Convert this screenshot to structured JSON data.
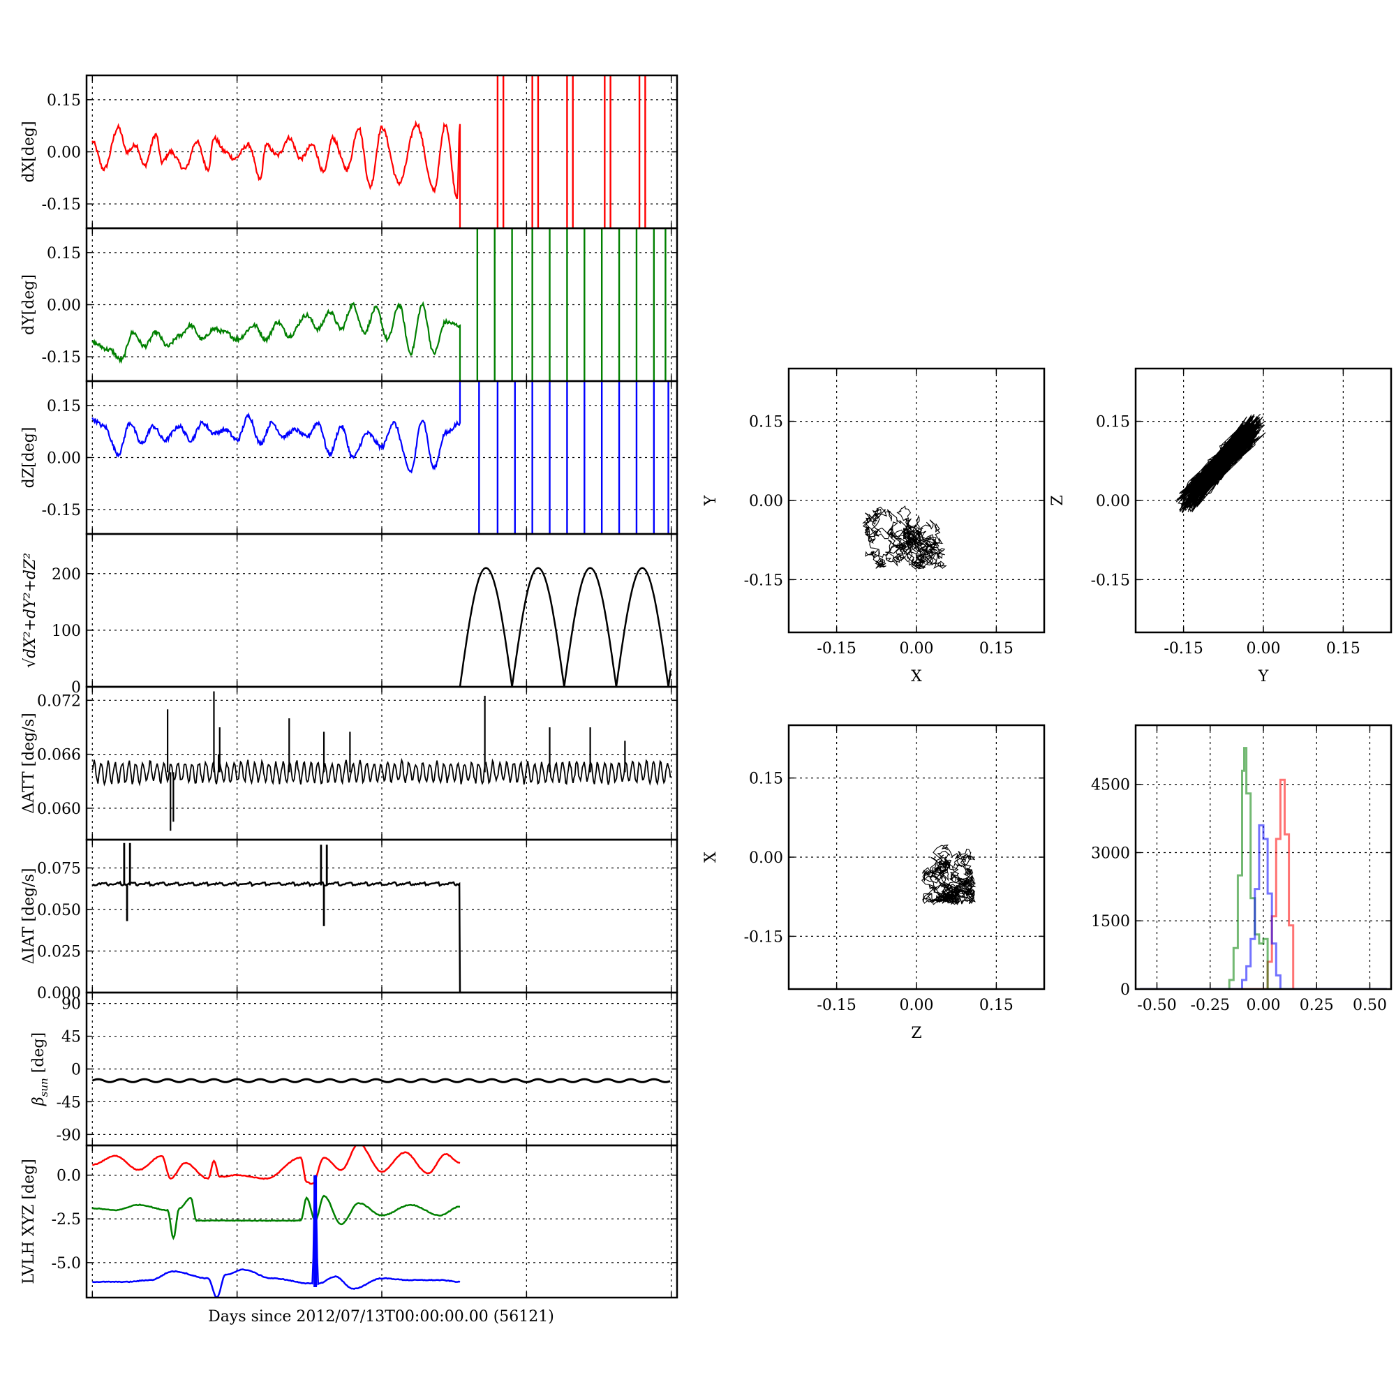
{
  "figure": {
    "xlabel": "Days since 2012/07/13T00:00:00.00 (56121)",
    "colors": {
      "x": "#ff0000",
      "y": "#008000",
      "z": "#0000ff",
      "k": "#000000"
    }
  },
  "chart_data": [
    {
      "id": "dx",
      "type": "line",
      "ylabel": "dX[deg]",
      "ylim": [
        -0.22,
        0.22
      ],
      "yticks": [
        "0.15",
        "0.00",
        "-0.15"
      ],
      "ytick_values": [
        0.15,
        0.0,
        -0.15
      ],
      "series": [
        {
          "color": "#ff0000",
          "x": [
            0.0,
            0.02,
            0.045,
            0.06,
            0.075,
            0.09,
            0.11,
            0.12,
            0.135,
            0.16,
            0.18,
            0.2,
            0.21,
            0.23,
            0.245,
            0.27,
            0.29,
            0.3,
            0.32,
            0.34,
            0.36,
            0.38,
            0.4,
            0.415,
            0.44,
            0.46,
            0.48,
            0.5,
            0.53,
            0.56,
            0.59,
            0.61,
            0.63,
            0.635,
            0.635
          ],
          "values": [
            0.03,
            -0.05,
            0.07,
            0.0,
            0.02,
            -0.04,
            0.05,
            -0.03,
            0.0,
            -0.05,
            0.03,
            -0.05,
            0.04,
            0.0,
            -0.02,
            0.02,
            -0.08,
            0.02,
            -0.01,
            0.04,
            -0.02,
            0.02,
            -0.06,
            0.04,
            -0.05,
            0.07,
            -0.1,
            0.07,
            -0.09,
            0.08,
            -0.11,
            0.08,
            -0.13,
            0.08,
            -0.22
          ],
          "spikes": [
            0.7,
            0.71,
            0.76,
            0.77,
            0.82,
            0.83,
            0.885,
            0.895,
            0.945,
            0.955
          ],
          "spike_range": [
            -0.22,
            0.22
          ]
        }
      ]
    },
    {
      "id": "dy",
      "type": "line",
      "ylabel": "dY[deg]",
      "ylim": [
        -0.22,
        0.22
      ],
      "yticks": [
        "0.15",
        "0.00",
        "-0.15"
      ],
      "ytick_values": [
        0.15,
        0.0,
        -0.15
      ],
      "series": [
        {
          "color": "#008000",
          "x": [
            0.0,
            0.03,
            0.05,
            0.07,
            0.09,
            0.11,
            0.13,
            0.15,
            0.17,
            0.19,
            0.21,
            0.23,
            0.25,
            0.28,
            0.3,
            0.32,
            0.34,
            0.37,
            0.39,
            0.41,
            0.43,
            0.45,
            0.47,
            0.49,
            0.51,
            0.53,
            0.55,
            0.57,
            0.59,
            0.61,
            0.635,
            0.635
          ],
          "values": [
            -0.11,
            -0.13,
            -0.16,
            -0.08,
            -0.12,
            -0.08,
            -0.12,
            -0.09,
            -0.06,
            -0.1,
            -0.07,
            -0.08,
            -0.1,
            -0.06,
            -0.1,
            -0.05,
            -0.09,
            -0.03,
            -0.07,
            -0.02,
            -0.07,
            0.0,
            -0.08,
            -0.01,
            -0.1,
            0.0,
            -0.14,
            0.0,
            -0.14,
            -0.05,
            -0.06,
            -0.22
          ],
          "spikes": [
            0.665,
            0.695,
            0.725,
            0.76,
            0.79,
            0.82,
            0.85,
            0.88,
            0.91,
            0.94,
            0.97,
            0.99
          ],
          "spike_range": [
            -0.22,
            0.22
          ]
        }
      ]
    },
    {
      "id": "dz",
      "type": "line",
      "ylabel": "dZ[deg]",
      "ylim": [
        -0.22,
        0.22
      ],
      "yticks": [
        "0.15",
        "0.00",
        "-0.15"
      ],
      "ytick_values": [
        0.15,
        0.0,
        -0.15
      ],
      "series": [
        {
          "color": "#0000ff",
          "x": [
            0.0,
            0.02,
            0.045,
            0.065,
            0.085,
            0.105,
            0.125,
            0.15,
            0.17,
            0.19,
            0.21,
            0.23,
            0.25,
            0.27,
            0.29,
            0.31,
            0.33,
            0.35,
            0.37,
            0.39,
            0.41,
            0.43,
            0.45,
            0.475,
            0.5,
            0.52,
            0.55,
            0.57,
            0.59,
            0.61,
            0.635,
            0.635
          ],
          "values": [
            0.11,
            0.09,
            0.01,
            0.1,
            0.04,
            0.09,
            0.05,
            0.09,
            0.05,
            0.1,
            0.07,
            0.08,
            0.05,
            0.12,
            0.04,
            0.1,
            0.06,
            0.08,
            0.06,
            0.1,
            0.01,
            0.09,
            0.0,
            0.07,
            0.03,
            0.1,
            -0.04,
            0.11,
            -0.03,
            0.07,
            0.1,
            0.22
          ],
          "spikes": [
            0.668,
            0.7,
            0.73,
            0.76,
            0.79,
            0.82,
            0.85,
            0.88,
            0.91,
            0.94,
            0.97,
            0.995
          ],
          "spike_range": [
            -0.22,
            0.22
          ]
        }
      ]
    },
    {
      "id": "mag",
      "type": "line",
      "ylabel": "√dX²+dY²+dZ²",
      "ylim": [
        0,
        270
      ],
      "yticks": [
        "200",
        "100",
        "0"
      ],
      "ytick_values": [
        200,
        100,
        0
      ],
      "series": [
        {
          "color": "#000000",
          "x": [
            0.0,
            0.635,
            0.68,
            0.725,
            0.77,
            0.815,
            0.86,
            0.905,
            0.95,
            0.995,
            1.0
          ],
          "values": [
            0,
            0,
            210,
            0,
            210,
            0,
            210,
            0,
            210,
            0,
            190
          ],
          "wave": {
            "x0": 0.635,
            "x1": 0.995,
            "period": 0.09,
            "amp": 210
          }
        }
      ]
    },
    {
      "id": "datt",
      "type": "line",
      "ylabel": "ΔATT [deg/s]",
      "ylim": [
        0.0565,
        0.0735
      ],
      "yticks": [
        "0.072",
        "0.066",
        "0.060"
      ],
      "ytick_values": [
        0.072,
        0.066,
        0.06
      ],
      "series": [
        {
          "color": "#000000",
          "baseline": 0.064,
          "noise": 0.0011,
          "x": [
            0.13,
            0.135,
            0.14,
            0.21,
            0.22,
            0.218,
            0.34,
            0.4,
            0.445,
            0.678,
            0.79,
            0.86,
            0.92
          ],
          "values": [
            0.071,
            0.0575,
            0.0585,
            0.073,
            0.069,
            0.066,
            0.07,
            0.0685,
            0.0685,
            0.0725,
            0.069,
            0.069,
            0.0675
          ]
        }
      ]
    },
    {
      "id": "diat",
      "type": "line",
      "ylabel": "ΔIAT [deg/s]",
      "ylim": [
        0.0,
        0.092
      ],
      "yticks": [
        "0.075",
        "0.050",
        "0.025",
        "0.000"
      ],
      "ytick_values": [
        0.075,
        0.05,
        0.025,
        0.0
      ],
      "series": [
        {
          "color": "#000000",
          "baseline": 0.0645,
          "end": 0.635,
          "x": [
            0.055,
            0.06,
            0.065,
            0.395,
            0.4,
            0.405,
            0.635
          ],
          "values": [
            0.09,
            0.043,
            0.09,
            0.089,
            0.04,
            0.089,
            0.0
          ]
        }
      ]
    },
    {
      "id": "beta",
      "type": "line",
      "ylabel": "βsun [deg]",
      "ylim": [
        -105,
        105
      ],
      "yticks": [
        "90",
        "45",
        "0",
        "-45",
        "-90"
      ],
      "ytick_values": [
        90,
        45,
        0,
        -45,
        -90
      ],
      "series": [
        {
          "color": "#000000",
          "level": -16,
          "amp": 2,
          "period": 0.04
        }
      ]
    },
    {
      "id": "lvlh",
      "type": "line",
      "ylabel": "LVLH XYZ [deg]",
      "ylim": [
        -7.0,
        1.7
      ],
      "yticks": [
        "0.0",
        "-2.5",
        "-5.0"
      ],
      "ytick_values": [
        0.0,
        -2.5,
        -5.0
      ],
      "series": [
        {
          "color": "#ff0000",
          "x": [
            0.0,
            0.04,
            0.08,
            0.12,
            0.135,
            0.16,
            0.2,
            0.21,
            0.22,
            0.25,
            0.3,
            0.36,
            0.37,
            0.38,
            0.4,
            0.43,
            0.46,
            0.5,
            0.54,
            0.58,
            0.61,
            0.635
          ],
          "values": [
            0.6,
            1.1,
            0.3,
            1.1,
            -0.2,
            0.7,
            -0.2,
            0.8,
            -0.1,
            0.0,
            -0.2,
            1.0,
            -0.4,
            -0.5,
            1.0,
            0.3,
            1.8,
            0.2,
            1.3,
            0.1,
            1.2,
            0.7
          ]
        },
        {
          "color": "#008000",
          "x": [
            0.0,
            0.04,
            0.08,
            0.13,
            0.14,
            0.15,
            0.17,
            0.18,
            0.19,
            0.25,
            0.36,
            0.37,
            0.385,
            0.4,
            0.43,
            0.46,
            0.5,
            0.55,
            0.6,
            0.635
          ],
          "values": [
            -1.9,
            -2.0,
            -1.7,
            -2.0,
            -3.6,
            -1.9,
            -1.3,
            -2.6,
            -2.6,
            -2.6,
            -2.6,
            -1.3,
            -2.6,
            -1.2,
            -2.8,
            -1.6,
            -2.3,
            -1.7,
            -2.3,
            -1.8
          ]
        },
        {
          "color": "#0000ff",
          "x": [
            0.0,
            0.06,
            0.1,
            0.14,
            0.2,
            0.215,
            0.23,
            0.26,
            0.31,
            0.38,
            0.385,
            0.39,
            0.42,
            0.45,
            0.5,
            0.55,
            0.6,
            0.635
          ],
          "values": [
            -6.1,
            -6.1,
            -6.0,
            -5.5,
            -5.9,
            -7.0,
            -5.7,
            -5.4,
            -5.9,
            -6.2,
            -0.3,
            -6.2,
            -5.8,
            -6.5,
            -5.9,
            -6.0,
            -6.0,
            -6.1
          ],
          "extra_spike": {
            "x": 0.385,
            "range": [
              -6.4,
              0.0
            ]
          }
        }
      ]
    },
    {
      "id": "sc_xy",
      "type": "scatter",
      "xlabel": "X",
      "ylabel": "Y",
      "xlim": [
        -0.24,
        0.24
      ],
      "ylim": [
        -0.25,
        0.25
      ],
      "xticks": [
        "-0.15",
        "0.00",
        "0.15"
      ],
      "xtick_values": [
        -0.15,
        0.0,
        0.15
      ],
      "yticks": [
        "0.15",
        "0.00",
        "-0.15"
      ],
      "ytick_values": [
        0.15,
        0.0,
        -0.15
      ],
      "cluster": {
        "cx": -0.02,
        "cy": -0.07,
        "rx": 0.08,
        "ry": 0.06
      }
    },
    {
      "id": "sc_yz",
      "type": "scatter",
      "xlabel": "Y",
      "ylabel": "Z",
      "xlim": [
        -0.24,
        0.24
      ],
      "ylim": [
        -0.25,
        0.25
      ],
      "xticks": [
        "-0.15",
        "0.00",
        "0.15"
      ],
      "xtick_values": [
        -0.15,
        0.0,
        0.15
      ],
      "yticks": [
        "0.15",
        "0.00",
        "-0.15"
      ],
      "ytick_values": [
        0.15,
        0.0,
        -0.15
      ],
      "cluster": {
        "cx": -0.08,
        "cy": 0.07,
        "rx": 0.07,
        "ry": 0.07,
        "slope": 1.1
      }
    },
    {
      "id": "sc_zx",
      "type": "scatter",
      "xlabel": "Z",
      "ylabel": "X",
      "xlim": [
        -0.24,
        0.24
      ],
      "ylim": [
        -0.25,
        0.25
      ],
      "xticks": [
        "-0.15",
        "0.00",
        "0.15"
      ],
      "xtick_values": [
        -0.15,
        0.0,
        0.15
      ],
      "yticks": [
        "0.15",
        "0.00",
        "-0.15"
      ],
      "ytick_values": [
        0.15,
        0.0,
        -0.15
      ],
      "cluster": {
        "cx": 0.06,
        "cy": -0.01,
        "rx": 0.05,
        "ry": 0.08
      }
    },
    {
      "id": "hist",
      "type": "histogram",
      "xlim": [
        -0.6,
        0.6
      ],
      "ylim": [
        0,
        5800
      ],
      "xticks": [
        "-0.50",
        "-0.25",
        "0.00",
        "0.25",
        "0.50"
      ],
      "xtick_values": [
        -0.5,
        -0.25,
        0.0,
        0.25,
        0.5
      ],
      "yticks": [
        "4500",
        "3000",
        "1500",
        "0"
      ],
      "ytick_values": [
        4500,
        3000,
        1500,
        0
      ],
      "series": [
        {
          "color": "#ff0000",
          "opacity": 0.55,
          "x": [
            -0.58,
            0.0,
            0.02,
            0.04,
            0.06,
            0.08,
            0.1,
            0.12,
            0.14,
            0.58
          ],
          "values": [
            0,
            0,
            600,
            1600,
            3300,
            4600,
            3400,
            1400,
            0,
            0
          ]
        },
        {
          "color": "#008000",
          "opacity": 0.55,
          "x": [
            -0.58,
            -0.18,
            -0.16,
            -0.14,
            -0.12,
            -0.1,
            -0.09,
            -0.08,
            -0.06,
            -0.04,
            -0.02,
            0.0,
            0.02,
            0.58
          ],
          "values": [
            0,
            0,
            200,
            900,
            2500,
            4800,
            5300,
            4300,
            2000,
            1200,
            1000,
            1100,
            0,
            0
          ]
        },
        {
          "color": "#0000ff",
          "opacity": 0.55,
          "x": [
            -0.58,
            -0.12,
            -0.1,
            -0.08,
            -0.06,
            -0.04,
            -0.02,
            0.0,
            0.02,
            0.04,
            0.06,
            0.08,
            0.58
          ],
          "values": [
            0,
            0,
            200,
            500,
            1100,
            2200,
            3600,
            3300,
            2100,
            1000,
            300,
            0,
            0
          ]
        }
      ]
    }
  ]
}
